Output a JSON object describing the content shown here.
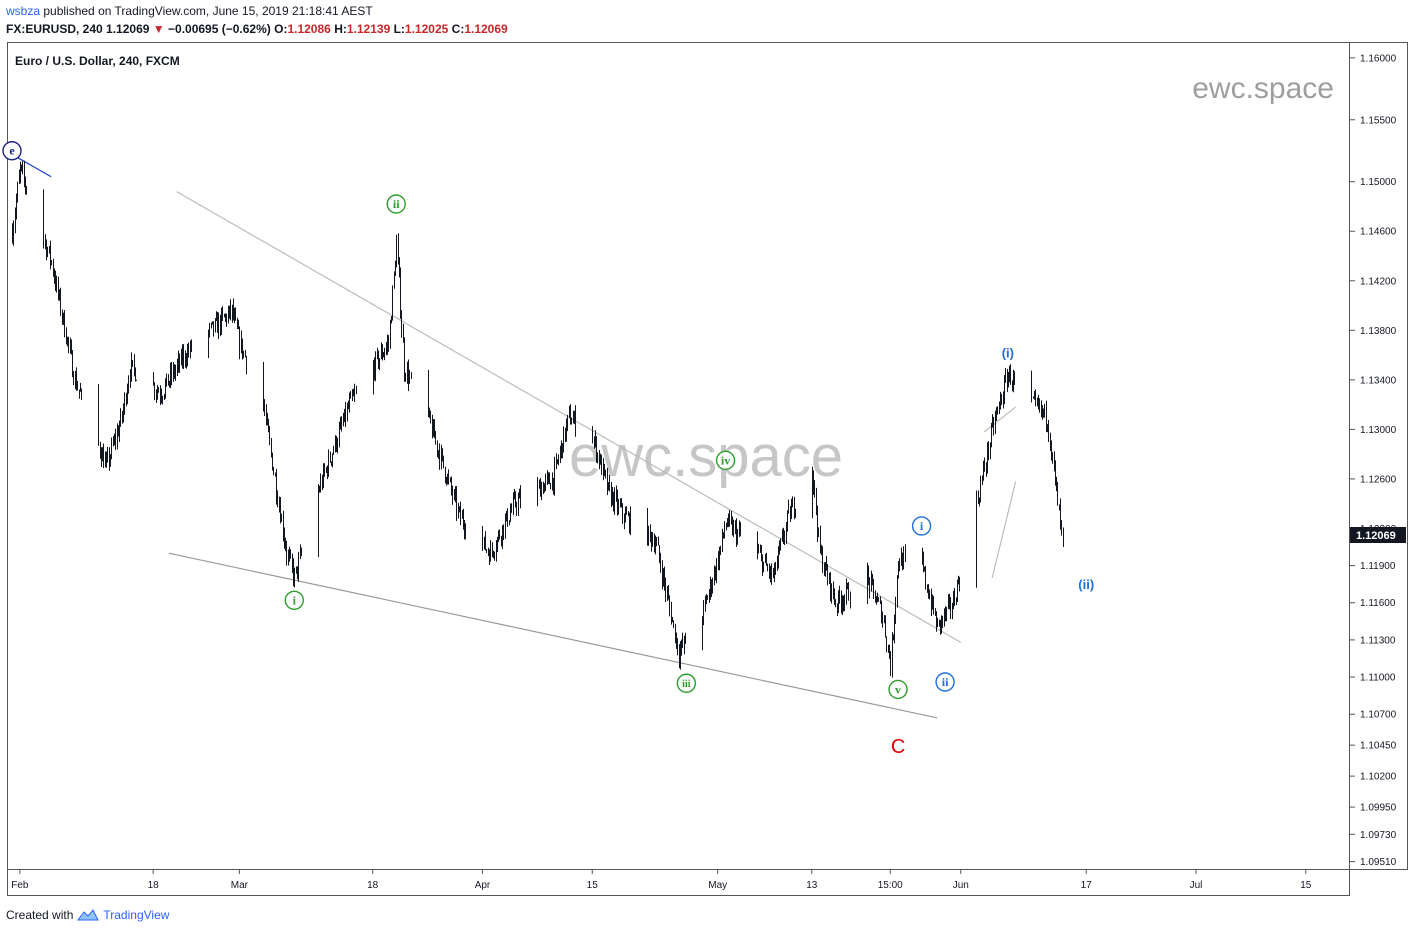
{
  "header": {
    "user": "wsbza",
    "published_text": "published on TradingView.com, June 15, 2019 21:18:41 AEST",
    "symbol": "FX:EURUSD, 240",
    "last": "1.12069",
    "arrow": "▼",
    "change": "−0.00695 (−0.62%)",
    "o_label": "O:",
    "o_value": "1.12086",
    "h_label": "H:",
    "h_value": "1.12139",
    "l_label": "L:",
    "l_value": "1.12025",
    "c_label": "C:",
    "c_value": "1.12069"
  },
  "footer": {
    "created_text": "Created with",
    "brand": "TradingView"
  },
  "chart_data": {
    "type": "line",
    "title": "Euro / U.S. Dollar, 240, FXCM",
    "watermark_small": "ewc.space",
    "watermark_large": "ewc.space",
    "price_label": "1.12069",
    "ylim": [
      1.0945,
      1.1612
    ],
    "y_ticks": [
      "1.16000",
      "1.15500",
      "1.15000",
      "1.14600",
      "1.14200",
      "1.13800",
      "1.13400",
      "1.13000",
      "1.12600",
      "1.12200",
      "1.11900",
      "1.11600",
      "1.11300",
      "1.11000",
      "1.10700",
      "1.10450",
      "1.10200",
      "1.09950",
      "1.09730",
      "1.09510"
    ],
    "x_ticks": [
      "Feb",
      "18",
      "Mar",
      "18",
      "Apr",
      "15",
      "May",
      "13",
      "15:00",
      "Jun",
      "17",
      "Jul",
      "15"
    ],
    "x_range": [
      "2019-01-31",
      "2019-07-20"
    ],
    "series": [
      {
        "x": [
          "2019-01-31",
          "2019-02-01",
          "2019-02-05",
          "2019-02-08",
          "2019-02-12",
          "2019-02-14",
          "2019-02-15",
          "2019-02-19",
          "2019-02-22",
          "2019-02-28",
          "2019-03-01",
          "2019-03-04",
          "2019-03-07",
          "2019-03-08",
          "2019-03-11",
          "2019-03-15",
          "2019-03-20",
          "2019-03-21",
          "2019-03-22",
          "2019-03-25",
          "2019-03-29",
          "2019-04-02",
          "2019-04-05",
          "2019-04-10",
          "2019-04-12",
          "2019-04-15",
          "2019-04-17",
          "2019-04-19",
          "2019-04-23",
          "2019-04-26",
          "2019-04-29",
          "2019-05-01",
          "2019-05-02",
          "2019-05-06",
          "2019-05-08",
          "2019-05-10",
          "2019-05-13",
          "2019-05-14",
          "2019-05-16",
          "2019-05-20",
          "2019-05-22",
          "2019-05-23",
          "2019-05-24",
          "2019-05-27",
          "2019-05-29",
          "2019-05-31",
          "2019-06-03",
          "2019-06-05",
          "2019-06-07",
          "2019-06-10",
          "2019-06-12",
          "2019-06-14"
        ],
        "values": [
          1.146,
          1.151,
          1.1435,
          1.134,
          1.127,
          1.131,
          1.135,
          1.133,
          1.136,
          1.1395,
          1.137,
          1.132,
          1.12,
          1.118,
          1.125,
          1.132,
          1.137,
          1.145,
          1.135,
          1.131,
          1.123,
          1.12,
          1.124,
          1.126,
          1.131,
          1.1295,
          1.125,
          1.123,
          1.121,
          1.112,
          1.115,
          1.1195,
          1.1225,
          1.12,
          1.118,
          1.123,
          1.127,
          1.12,
          1.116,
          1.118,
          1.115,
          1.111,
          1.1195,
          1.119,
          1.114,
          1.116,
          1.124,
          1.13,
          1.1345,
          1.132,
          1.131,
          1.1205
        ]
      }
    ],
    "annotations": [
      {
        "text": "e",
        "x": "2019-01-31",
        "y": 1.1525,
        "style": "circle",
        "color": "#1a237e"
      },
      {
        "text": "i",
        "x": "2019-03-08",
        "y": 1.1162,
        "style": "circle",
        "color": "#2e9d2e"
      },
      {
        "text": "ii",
        "x": "2019-03-21",
        "y": 1.1482,
        "style": "circle",
        "color": "#2e9d2e"
      },
      {
        "text": "iii",
        "x": "2019-04-27",
        "y": 1.1095,
        "style": "circle",
        "color": "#2e9d2e"
      },
      {
        "text": "iv",
        "x": "2019-05-02",
        "y": 1.1275,
        "style": "circle",
        "color": "#2e9d2e"
      },
      {
        "text": "v",
        "x": "2019-05-24",
        "y": 1.109,
        "style": "circle",
        "color": "#2e9d2e"
      },
      {
        "text": "i",
        "x": "2019-05-27",
        "y": 1.1222,
        "style": "circle",
        "color": "#1e6fd8"
      },
      {
        "text": "ii",
        "x": "2019-05-30",
        "y": 1.1096,
        "style": "circle",
        "color": "#1e6fd8"
      },
      {
        "text": "(i)",
        "x": "2019-06-07",
        "y": 1.1362,
        "style": "paren",
        "color": "#1e6fd8"
      },
      {
        "text": "(ii)",
        "x": "2019-06-17",
        "y": 1.1175,
        "style": "paren",
        "color": "#1e6fd8"
      },
      {
        "text": "C",
        "x": "2019-05-24",
        "y": 1.1045,
        "style": "big",
        "color": "#e00000"
      }
    ],
    "trendlines": [
      {
        "x1": "2019-01-31",
        "y1": 1.1522,
        "x2": "2019-02-05",
        "y2": 1.1504,
        "color": "#1a3fcf"
      },
      {
        "x1": "2019-02-21",
        "y1": 1.1492,
        "x2": "2019-06-01",
        "y2": 1.1128,
        "color": "#bbbbbb"
      },
      {
        "x1": "2019-02-20",
        "y1": 1.12,
        "x2": "2019-05-29",
        "y2": 1.1067,
        "color": "#999999"
      },
      {
        "x1": "2019-06-05",
        "y1": 1.118,
        "x2": "2019-06-08",
        "y2": 1.1258,
        "color": "#bbbbbb"
      },
      {
        "x1": "2019-06-04",
        "y1": 1.1298,
        "x2": "2019-06-08",
        "y2": 1.1318,
        "color": "#bbbbbb"
      }
    ]
  }
}
